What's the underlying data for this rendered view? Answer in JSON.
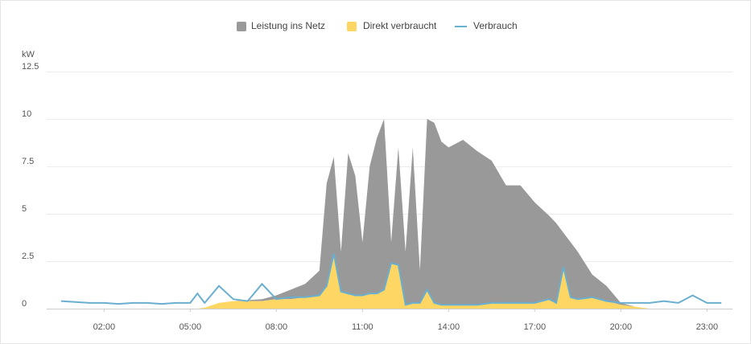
{
  "chart_data": {
    "type": "stacked-area",
    "y_label": "kW",
    "x": [
      0.5,
      1,
      1.5,
      2,
      2.5,
      3,
      3.5,
      4,
      4.5,
      5,
      5.25,
      5.5,
      6,
      6.5,
      7,
      7.5,
      8,
      8.5,
      9,
      9.5,
      9.75,
      10,
      10.25,
      10.5,
      10.75,
      11,
      11.25,
      11.5,
      11.75,
      12,
      12.25,
      12.5,
      12.75,
      13,
      13.25,
      13.5,
      13.75,
      14,
      14.5,
      15,
      15.5,
      16,
      16.5,
      17,
      17.5,
      17.75,
      18,
      18.25,
      18.5,
      19,
      19.5,
      20,
      20.5,
      21,
      21.5,
      22,
      22.5,
      23,
      23.5
    ],
    "series": [
      {
        "name": "Leistung ins Netz",
        "color": "#999999",
        "kind": "area",
        "stack": 1,
        "values": [
          0,
          0,
          0,
          0,
          0,
          0,
          0,
          0,
          0,
          0,
          0,
          0,
          0,
          0,
          0.05,
          0.1,
          0.2,
          0.5,
          0.7,
          1.3,
          5.4,
          5.1,
          2.1,
          7.4,
          6.3,
          2.8,
          6.7,
          8.2,
          9.0,
          1.1,
          6.2,
          2.8,
          8.2,
          1.7,
          9.0,
          9.5,
          8.6,
          8.3,
          8.7,
          8.1,
          7.5,
          6.2,
          6.2,
          5.3,
          4.4,
          4.2,
          1.8,
          2.9,
          2.5,
          1.2,
          0.8,
          0.1,
          0,
          0,
          0,
          0,
          0,
          0,
          0
        ]
      },
      {
        "name": "Direkt verbraucht",
        "color": "#fdd663",
        "kind": "area",
        "stack": 0,
        "values": [
          0,
          0,
          0,
          0,
          0,
          0,
          0,
          0,
          0,
          0,
          0,
          0.05,
          0.3,
          0.4,
          0.4,
          0.4,
          0.5,
          0.5,
          0.6,
          0.7,
          1.2,
          2.9,
          0.9,
          0.8,
          0.7,
          0.7,
          0.8,
          0.8,
          1.0,
          2.4,
          2.3,
          0.2,
          0.3,
          0.3,
          1.0,
          0.3,
          0.2,
          0.2,
          0.2,
          0.2,
          0.3,
          0.3,
          0.3,
          0.3,
          0.5,
          0.3,
          2.2,
          0.6,
          0.5,
          0.6,
          0.4,
          0.2,
          0.1,
          0,
          0,
          0,
          0,
          0,
          0
        ]
      },
      {
        "name": "Verbrauch",
        "color": "#6aaed0",
        "kind": "line",
        "values": [
          0.4,
          0.35,
          0.3,
          0.3,
          0.25,
          0.3,
          0.3,
          0.25,
          0.3,
          0.3,
          0.8,
          0.3,
          1.2,
          0.5,
          0.4,
          1.3,
          0.5,
          0.6,
          0.6,
          0.7,
          1.2,
          2.9,
          0.9,
          0.8,
          0.7,
          0.7,
          0.8,
          0.8,
          1.0,
          2.4,
          2.3,
          0.2,
          0.3,
          0.3,
          1.0,
          0.3,
          0.2,
          0.2,
          0.2,
          0.2,
          0.3,
          0.3,
          0.3,
          0.3,
          0.5,
          0.3,
          2.2,
          0.6,
          0.5,
          0.6,
          0.4,
          0.3,
          0.3,
          0.3,
          0.4,
          0.3,
          0.7,
          0.3,
          0.3
        ]
      }
    ],
    "xlim": [
      0,
      24
    ],
    "xticks": [
      {
        "value": 2,
        "label": "02:00"
      },
      {
        "value": 5,
        "label": "05:00"
      },
      {
        "value": 8,
        "label": "08:00"
      },
      {
        "value": 11,
        "label": "11:00"
      },
      {
        "value": 14,
        "label": "14:00"
      },
      {
        "value": 17,
        "label": "17:00"
      },
      {
        "value": 20,
        "label": "20:00"
      },
      {
        "value": 23,
        "label": "23:00"
      }
    ],
    "ylim": [
      0,
      12.5
    ],
    "yticks": [
      0,
      2.5,
      5,
      7.5,
      10,
      12.5
    ],
    "grid": true
  }
}
